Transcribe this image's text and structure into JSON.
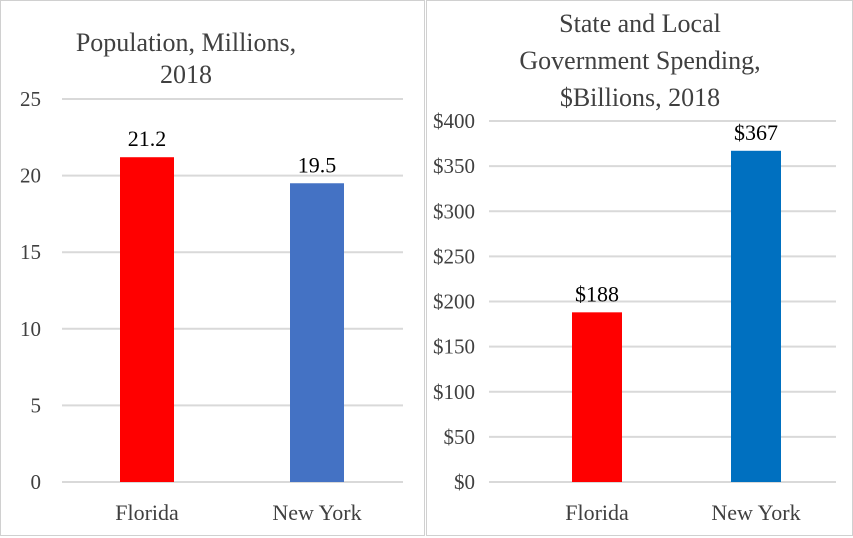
{
  "chart_data": [
    {
      "type": "bar",
      "title_lines": [
        "Population, Millions,",
        "2018"
      ],
      "categories": [
        "Florida",
        "New York"
      ],
      "values": [
        21.2,
        19.5
      ],
      "data_labels": [
        "21.2",
        "19.5"
      ],
      "colors": [
        "#ff0000",
        "#4472c4"
      ],
      "ylim": [
        0,
        25
      ],
      "yticks": [
        0,
        5,
        10,
        15,
        20,
        25
      ],
      "ytick_labels": [
        "0",
        "5",
        "10",
        "15",
        "20",
        "25"
      ],
      "grid": true
    },
    {
      "type": "bar",
      "title_lines": [
        "State and Local",
        "Government Spending,",
        "$Billions, 2018"
      ],
      "categories": [
        "Florida",
        "New York"
      ],
      "values": [
        188,
        367
      ],
      "data_labels": [
        "$188",
        "$367"
      ],
      "colors": [
        "#ff0000",
        "#0070c0"
      ],
      "ylim": [
        0,
        400
      ],
      "yticks": [
        0,
        50,
        100,
        150,
        200,
        250,
        300,
        350,
        400
      ],
      "ytick_labels": [
        "$0",
        "$50",
        "$100",
        "$150",
        "$200",
        "$250",
        "$300",
        "$350",
        "$400"
      ],
      "grid": true
    }
  ]
}
